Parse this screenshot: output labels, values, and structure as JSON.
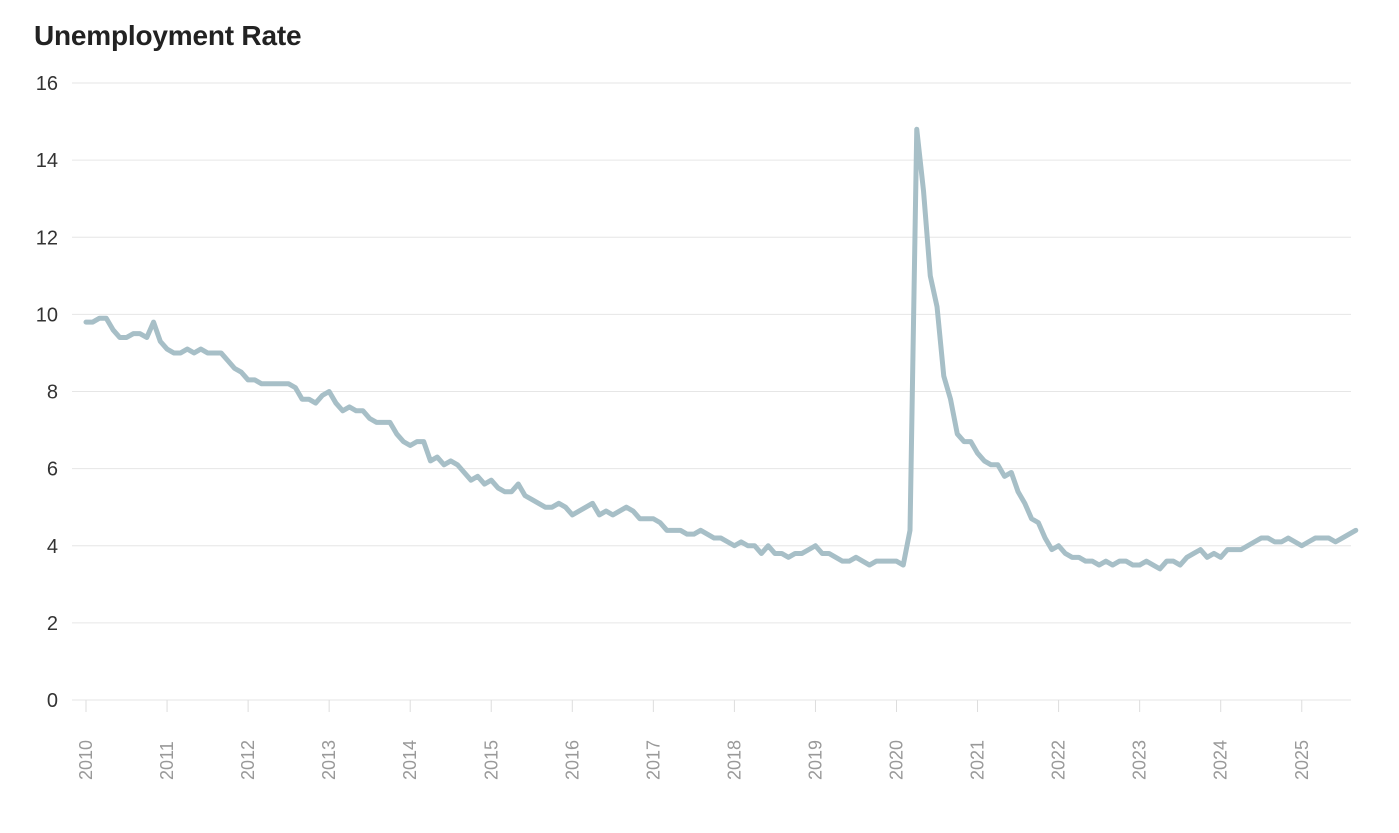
{
  "chart_data": {
    "type": "line",
    "title": "Unemployment Rate",
    "xlabel": "",
    "ylabel": "",
    "ylim": [
      0,
      16
    ],
    "y_ticks": [
      0,
      2,
      4,
      6,
      8,
      10,
      12,
      14,
      16
    ],
    "x_ticks": [
      "2010",
      "2011",
      "2012",
      "2013",
      "2014",
      "2015",
      "2016",
      "2017",
      "2018",
      "2019",
      "2020",
      "2021",
      "2022",
      "2023",
      "2024",
      "2025"
    ],
    "grid": "horizontal",
    "line_color": "#a7bfc7",
    "x_start": "2010-01",
    "x_end": "2025-08",
    "series": [
      {
        "values": [
          9.8,
          9.8,
          9.9,
          9.9,
          9.6,
          9.4,
          9.4,
          9.5,
          9.5,
          9.4,
          9.8,
          9.3,
          9.1,
          9.0,
          9.0,
          9.1,
          9.0,
          9.1,
          9.0,
          9.0,
          9.0,
          8.8,
          8.6,
          8.5,
          8.3,
          8.3,
          8.2,
          8.2,
          8.2,
          8.2,
          8.2,
          8.1,
          7.8,
          7.8,
          7.7,
          7.9,
          8.0,
          7.7,
          7.5,
          7.6,
          7.5,
          7.5,
          7.3,
          7.2,
          7.2,
          7.2,
          6.9,
          6.7,
          6.6,
          6.7,
          6.7,
          6.2,
          6.3,
          6.1,
          6.2,
          6.1,
          5.9,
          5.7,
          5.8,
          5.6,
          5.7,
          5.5,
          5.4,
          5.4,
          5.6,
          5.3,
          5.2,
          5.1,
          5.0,
          5.0,
          5.1,
          5.0,
          4.8,
          4.9,
          5.0,
          5.1,
          4.8,
          4.9,
          4.8,
          4.9,
          5.0,
          4.9,
          4.7,
          4.7,
          4.7,
          4.6,
          4.4,
          4.4,
          4.4,
          4.3,
          4.3,
          4.4,
          4.3,
          4.2,
          4.2,
          4.1,
          4.0,
          4.1,
          4.0,
          4.0,
          3.8,
          4.0,
          3.8,
          3.8,
          3.7,
          3.8,
          3.8,
          3.9,
          4.0,
          3.8,
          3.8,
          3.7,
          3.6,
          3.6,
          3.7,
          3.6,
          3.5,
          3.6,
          3.6,
          3.6,
          3.6,
          3.5,
          4.4,
          14.8,
          13.2,
          11.0,
          10.2,
          8.4,
          7.8,
          6.9,
          6.7,
          6.7,
          6.4,
          6.2,
          6.1,
          6.1,
          5.8,
          5.9,
          5.4,
          5.1,
          4.7,
          4.6,
          4.2,
          3.9,
          4.0,
          3.8,
          3.7,
          3.7,
          3.6,
          3.6,
          3.5,
          3.6,
          3.5,
          3.6,
          3.6,
          3.5,
          3.5,
          3.6,
          3.5,
          3.4,
          3.6,
          3.6,
          3.5,
          3.7,
          3.8,
          3.9,
          3.7,
          3.8,
          3.7,
          3.9,
          3.9,
          3.9,
          4.0,
          4.1,
          4.2,
          4.2,
          4.1,
          4.1,
          4.2,
          4.1,
          4.0,
          4.1,
          4.2,
          4.2,
          4.2,
          4.1,
          4.2,
          4.3,
          4.4
        ]
      }
    ]
  }
}
